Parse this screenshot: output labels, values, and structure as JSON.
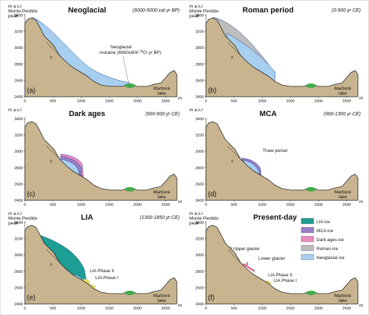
{
  "axis": {
    "y_label": "m a.s.l",
    "x_unit": "m",
    "yticks": [
      "3400",
      "3200",
      "3000",
      "2800",
      "2600",
      "2400"
    ],
    "xticks": [
      "0",
      "500",
      "1000",
      "1500",
      "2000",
      "2500"
    ]
  },
  "peak_label": [
    "Monte Perdido",
    "peak"
  ],
  "lake_label": [
    "Marboré",
    "lake"
  ],
  "panels": [
    {
      "title": "Neoglacial",
      "period": "(6000-5000 cal yr BP)",
      "letter": "(a)",
      "annotations": [
        "?",
        "Neoglacial"
      ],
      "moraine_label": [
        "moraine (6900±800 ",
        "36",
        "Cl yr BP)"
      ]
    },
    {
      "title": "Roman period",
      "period": "(0-500 yr CE)",
      "letter": "(b)",
      "annotations": [
        "?"
      ]
    },
    {
      "title": "Dark ages",
      "period": "(500-900 yr CE)",
      "letter": "(c)",
      "annotations": [
        "?"
      ]
    },
    {
      "title": "MCA",
      "period": "(900-1300 yr CE)",
      "letter": "(d)",
      "annotations": [
        "?",
        "Thaw period"
      ]
    },
    {
      "title": "LIA",
      "period": "(1300-1850 yr CE)",
      "letter": "(e)",
      "annotations": [
        "?",
        "LIA Phase II",
        "LIA Phase I"
      ]
    },
    {
      "title": "Present-day",
      "letter": "(f)",
      "annotations": [
        "? Upper glacier",
        "Lower glacier",
        "II",
        "I",
        "LIA Phase II",
        "LIA Phase I"
      ]
    }
  ],
  "legend": [
    "LIA ice",
    "MCA ice",
    "Dark ages ice",
    "Roman ice",
    "Neoglacial ice"
  ]
}
